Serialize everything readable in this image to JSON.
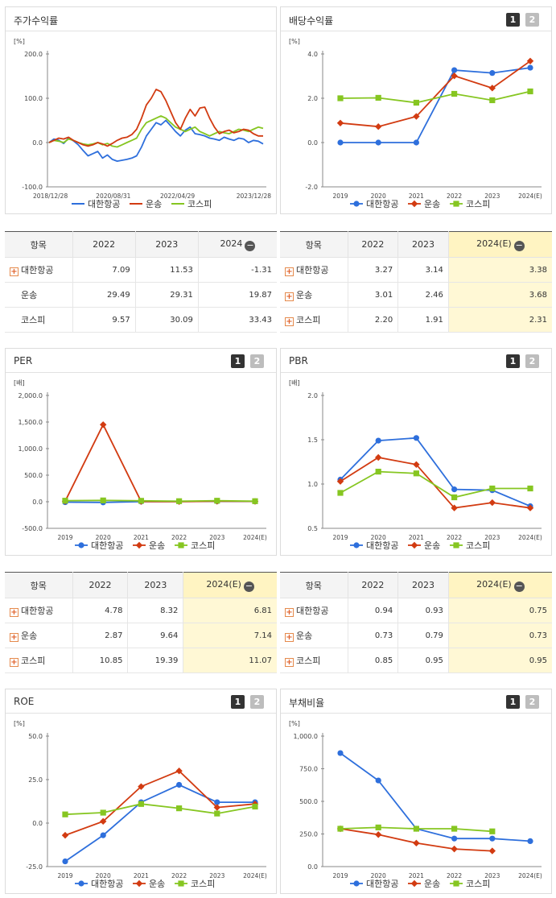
{
  "colors": {
    "대한항공": "#2e6fdc",
    "운송": "#d23b11",
    "코스피": "#86c621"
  },
  "series_names": [
    "대한항공",
    "운송",
    "코스피"
  ],
  "panels": {
    "stock_return": {
      "title": "주가수익률",
      "pages": [],
      "chart_data": {
        "type": "line",
        "unit": "[%]",
        "y_ticks": [
          "200.0",
          "100.0",
          "0.0",
          "-100.0"
        ],
        "ylim": [
          -100,
          200
        ],
        "x_ticks": [
          "2018/12/28",
          "2020/08/31",
          "2022/04/29",
          "2023/12/28"
        ],
        "x_tick_positions": [
          0,
          0.3,
          0.6,
          1
        ],
        "series": [
          {
            "name": "대한항공",
            "values": [
              0,
              8,
              5,
              -2,
              10,
              4,
              -5,
              -18,
              -30,
              -25,
              -20,
              -35,
              -28,
              -38,
              -42,
              -40,
              -38,
              -35,
              -30,
              -10,
              15,
              30,
              45,
              40,
              50,
              38,
              25,
              15,
              28,
              35,
              20,
              18,
              15,
              10,
              8,
              5,
              12,
              8,
              5,
              10,
              8,
              0,
              5,
              3,
              -3
            ]
          },
          {
            "name": "운송",
            "values": [
              0,
              5,
              10,
              8,
              12,
              5,
              0,
              -5,
              -8,
              -5,
              0,
              -3,
              -8,
              -2,
              5,
              10,
              12,
              18,
              30,
              55,
              85,
              100,
              120,
              115,
              95,
              70,
              45,
              30,
              55,
              75,
              60,
              78,
              80,
              55,
              35,
              20,
              25,
              28,
              22,
              25,
              30,
              28,
              20,
              15,
              15
            ]
          },
          {
            "name": "코스피",
            "values": [
              0,
              5,
              3,
              0,
              8,
              5,
              0,
              -3,
              -5,
              -3,
              0,
              -5,
              -2,
              -8,
              -10,
              -5,
              0,
              5,
              10,
              30,
              45,
              50,
              55,
              60,
              55,
              45,
              35,
              30,
              25,
              30,
              35,
              25,
              20,
              15,
              20,
              25,
              22,
              20,
              25,
              30,
              28,
              25,
              30,
              35,
              32
            ]
          }
        ]
      }
    },
    "dividend": {
      "title": "배당수익률",
      "pages": [
        "1",
        "2"
      ],
      "chart_data": {
        "type": "line",
        "unit": "[%]",
        "y_ticks": [
          "4.0",
          "2.0",
          "0.0",
          "-2.0"
        ],
        "ylim": [
          -2,
          4
        ],
        "categories": [
          "2019",
          "2020",
          "2021",
          "2022",
          "2023",
          "2024(E)"
        ],
        "series": [
          {
            "name": "대한항공",
            "values": [
              0,
              0,
              0,
              3.27,
              3.14,
              3.38
            ]
          },
          {
            "name": "운송",
            "values": [
              0.88,
              0.72,
              1.18,
              3.01,
              2.46,
              3.68
            ]
          },
          {
            "name": "코스피",
            "values": [
              2.0,
              2.02,
              1.8,
              2.2,
              1.91,
              2.31
            ]
          }
        ]
      }
    },
    "per": {
      "title": "PER",
      "pages": [
        "1",
        "2"
      ],
      "chart_data": {
        "type": "line",
        "unit": "[배]",
        "y_ticks": [
          "2,000.0",
          "1,500.0",
          "1,000.0",
          "500.0",
          "0.0",
          "-500.0"
        ],
        "ylim": [
          -500,
          2000
        ],
        "categories": [
          "2019",
          "2020",
          "2021",
          "2022",
          "2023",
          "2024(E)"
        ],
        "series": [
          {
            "name": "대한항공",
            "values": [
              -8,
              -12,
              2,
              4.78,
              8.32,
              6.81
            ]
          },
          {
            "name": "운송",
            "values": [
              10,
              1450,
              5,
              2.87,
              9.64,
              7.14
            ]
          },
          {
            "name": "코스피",
            "values": [
              20,
              25,
              18,
              10.85,
              19.39,
              11.07
            ]
          }
        ]
      }
    },
    "pbr": {
      "title": "PBR",
      "pages": [
        "1",
        "2"
      ],
      "chart_data": {
        "type": "line",
        "unit": "[배]",
        "y_ticks": [
          "2.0",
          "1.5",
          "1.0",
          "0.5"
        ],
        "ylim": [
          0.5,
          2.0
        ],
        "categories": [
          "2019",
          "2020",
          "2021",
          "2022",
          "2023",
          "2024(E)"
        ],
        "series": [
          {
            "name": "대한항공",
            "values": [
              1.05,
              1.49,
              1.52,
              0.94,
              0.93,
              0.75
            ]
          },
          {
            "name": "운송",
            "values": [
              1.03,
              1.3,
              1.22,
              0.73,
              0.79,
              0.73
            ]
          },
          {
            "name": "코스피",
            "values": [
              0.9,
              1.14,
              1.12,
              0.85,
              0.95,
              0.95
            ]
          }
        ]
      }
    },
    "roe": {
      "title": "ROE",
      "pages": [
        "1",
        "2"
      ],
      "chart_data": {
        "type": "line",
        "unit": "[%]",
        "y_ticks": [
          "50.0",
          "25.0",
          "0.0",
          "-25.0"
        ],
        "ylim": [
          -25,
          50
        ],
        "categories": [
          "2019",
          "2020",
          "2021",
          "2022",
          "2023",
          "2024(E)"
        ],
        "series": [
          {
            "name": "대한항공",
            "values": [
              -22,
              -7,
              12,
              22,
              12,
              12
            ]
          },
          {
            "name": "운송",
            "values": [
              -7,
              1,
              21,
              30,
              9,
              11
            ]
          },
          {
            "name": "코스피",
            "values": [
              5,
              6,
              11,
              8.5,
              5.5,
              9.5
            ]
          }
        ]
      }
    },
    "debt": {
      "title": "부채비율",
      "pages": [
        "1",
        "2"
      ],
      "chart_data": {
        "type": "line",
        "unit": "[%]",
        "y_ticks": [
          "1,000.0",
          "750.0",
          "500.0",
          "250.0",
          "0.0"
        ],
        "ylim": [
          0,
          1000
        ],
        "categories": [
          "2019",
          "2020",
          "2021",
          "2022",
          "2023",
          "2024(E)"
        ],
        "series": [
          {
            "name": "대한항공",
            "values": [
              870,
              660,
              290,
              215,
              215,
              195
            ]
          },
          {
            "name": "운송",
            "values": [
              290,
              245,
              180,
              135,
              120,
              null
            ]
          },
          {
            "name": "코스피",
            "values": [
              290,
              300,
              290,
              290,
              270,
              null
            ]
          }
        ]
      }
    }
  },
  "tables": {
    "stock_return": {
      "headers": [
        "항목",
        "2022",
        "2023",
        "2024"
      ],
      "estimate_col": false,
      "rows": [
        {
          "name": "대한항공",
          "plus": true,
          "values": [
            "7.09",
            "11.53",
            "-1.31"
          ]
        },
        {
          "name": "운송",
          "plus": false,
          "values": [
            "29.49",
            "29.31",
            "19.87"
          ]
        },
        {
          "name": "코스피",
          "plus": false,
          "values": [
            "9.57",
            "30.09",
            "33.43"
          ]
        }
      ]
    },
    "dividend": {
      "headers": [
        "항목",
        "2022",
        "2023",
        "2024(E)"
      ],
      "estimate_col": true,
      "rows": [
        {
          "name": "대한항공",
          "plus": true,
          "values": [
            "3.27",
            "3.14",
            "3.38"
          ]
        },
        {
          "name": "운송",
          "plus": true,
          "values": [
            "3.01",
            "2.46",
            "3.68"
          ]
        },
        {
          "name": "코스피",
          "plus": true,
          "values": [
            "2.20",
            "1.91",
            "2.31"
          ]
        }
      ]
    },
    "per": {
      "headers": [
        "항목",
        "2022",
        "2023",
        "2024(E)"
      ],
      "estimate_col": true,
      "rows": [
        {
          "name": "대한항공",
          "plus": true,
          "values": [
            "4.78",
            "8.32",
            "6.81"
          ]
        },
        {
          "name": "운송",
          "plus": true,
          "values": [
            "2.87",
            "9.64",
            "7.14"
          ]
        },
        {
          "name": "코스피",
          "plus": true,
          "values": [
            "10.85",
            "19.39",
            "11.07"
          ]
        }
      ]
    },
    "pbr": {
      "headers": [
        "항목",
        "2022",
        "2023",
        "2024(E)"
      ],
      "estimate_col": true,
      "rows": [
        {
          "name": "대한항공",
          "plus": true,
          "values": [
            "0.94",
            "0.93",
            "0.75"
          ]
        },
        {
          "name": "운송",
          "plus": true,
          "values": [
            "0.73",
            "0.79",
            "0.73"
          ]
        },
        {
          "name": "코스피",
          "plus": true,
          "values": [
            "0.85",
            "0.95",
            "0.95"
          ]
        }
      ]
    }
  }
}
